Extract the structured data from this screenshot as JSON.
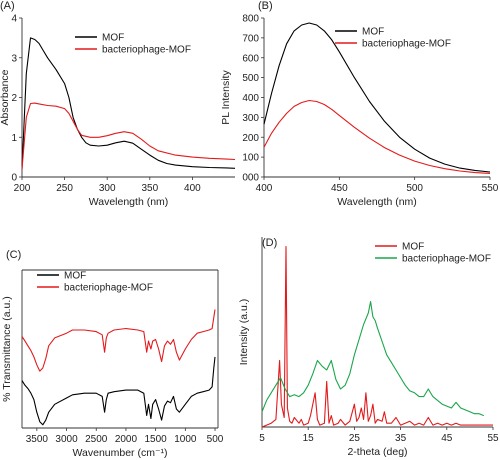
{
  "chart_data": [
    {
      "panel": "(A)",
      "type": "line",
      "xlabel": "Wavelength (nm)",
      "ylabel": "Absorbance",
      "xlim": [
        200,
        450
      ],
      "ylim": [
        0,
        4
      ],
      "xticks": [
        "200",
        "250",
        "300",
        "350",
        "400"
      ],
      "yticks": [
        "0",
        "1",
        "2",
        "3",
        "4"
      ],
      "legend_position": "top-right",
      "series": [
        {
          "name": "MOF",
          "color": "#000000",
          "x": [
            200,
            205,
            210,
            215,
            220,
            225,
            230,
            240,
            250,
            255,
            260,
            265,
            270,
            275,
            280,
            290,
            300,
            310,
            320,
            330,
            340,
            350,
            360,
            370,
            380,
            400,
            420,
            440,
            450
          ],
          "y": [
            0.2,
            2.6,
            3.5,
            3.46,
            3.36,
            3.18,
            3.0,
            2.7,
            2.35,
            2.0,
            1.5,
            1.2,
            1.0,
            0.86,
            0.8,
            0.78,
            0.8,
            0.86,
            0.9,
            0.85,
            0.7,
            0.55,
            0.42,
            0.34,
            0.3,
            0.26,
            0.24,
            0.23,
            0.22
          ]
        },
        {
          "name": "bacteriophage-MOF",
          "color": "#e31a1c",
          "x": [
            200,
            205,
            210,
            215,
            220,
            230,
            240,
            250,
            255,
            260,
            265,
            270,
            280,
            290,
            300,
            310,
            320,
            330,
            340,
            350,
            360,
            380,
            400,
            420,
            440,
            450
          ],
          "y": [
            0.2,
            1.5,
            1.85,
            1.86,
            1.84,
            1.8,
            1.78,
            1.72,
            1.6,
            1.4,
            1.2,
            1.05,
            1.0,
            1.0,
            1.04,
            1.1,
            1.14,
            1.1,
            0.95,
            0.78,
            0.66,
            0.55,
            0.5,
            0.47,
            0.45,
            0.44
          ]
        }
      ]
    },
    {
      "panel": "(B)",
      "type": "line",
      "xlabel": "Wavelength (nm)",
      "ylabel": "PL Intensity",
      "xlim": [
        400,
        550
      ],
      "ylim": [
        0,
        800
      ],
      "xticks": [
        "400",
        "450",
        "500",
        "550"
      ],
      "yticks": [
        "000",
        "100",
        "200",
        "300",
        "400",
        "500",
        "600",
        "700",
        "800"
      ],
      "legend_position": "top-right",
      "series": [
        {
          "name": "MOF",
          "color": "#000000",
          "x": [
            400,
            405,
            410,
            415,
            420,
            425,
            430,
            435,
            440,
            445,
            450,
            460,
            470,
            480,
            490,
            500,
            510,
            520,
            530,
            540,
            550
          ],
          "y": [
            265,
            420,
            560,
            670,
            735,
            765,
            775,
            765,
            735,
            690,
            630,
            500,
            380,
            280,
            200,
            140,
            95,
            65,
            45,
            33,
            25
          ]
        },
        {
          "name": "bacteriophage-MOF",
          "color": "#e31a1c",
          "x": [
            400,
            405,
            410,
            415,
            420,
            425,
            430,
            435,
            440,
            445,
            450,
            460,
            470,
            480,
            490,
            500,
            510,
            520,
            530,
            540,
            550
          ],
          "y": [
            150,
            220,
            275,
            320,
            355,
            375,
            385,
            380,
            365,
            340,
            310,
            250,
            195,
            148,
            110,
            80,
            58,
            42,
            30,
            22,
            18
          ]
        }
      ]
    },
    {
      "panel": "(C)",
      "type": "line",
      "xlabel": "Wavenumber (cm⁻¹)",
      "ylabel": "% Transmittance (a.u.)",
      "xlim": [
        3750,
        450
      ],
      "xticks": [
        "3500",
        "3000",
        "2500",
        "2000",
        "1500",
        "1000",
        "500"
      ],
      "legend_position": "top-left",
      "series": [
        {
          "name": "MOF",
          "color": "#000000",
          "x": [
            3750,
            3700,
            3650,
            3600,
            3550,
            3500,
            3450,
            3400,
            3350,
            3300,
            3200,
            3000,
            2900,
            2700,
            2500,
            2400,
            2360,
            2330,
            2300,
            2200,
            2000,
            1800,
            1700,
            1650,
            1620,
            1580,
            1550,
            1500,
            1450,
            1400,
            1350,
            1300,
            1250,
            1200,
            1150,
            1100,
            1000,
            900,
            800,
            700,
            600,
            550,
            520,
            500
          ],
          "y": [
            0.3,
            0.27,
            0.25,
            0.22,
            0.18,
            0.1,
            0.04,
            0.02,
            0.05,
            0.1,
            0.15,
            0.19,
            0.21,
            0.22,
            0.22,
            0.2,
            0.1,
            0.18,
            0.22,
            0.23,
            0.24,
            0.24,
            0.22,
            0.08,
            0.15,
            0.06,
            0.15,
            0.18,
            0.12,
            0.05,
            0.14,
            0.17,
            0.16,
            0.2,
            0.12,
            0.1,
            0.15,
            0.2,
            0.22,
            0.23,
            0.24,
            0.26,
            0.38,
            0.45
          ]
        },
        {
          "name": "bacteriophage-MOF",
          "color": "#e31a1c",
          "x": [
            3750,
            3700,
            3650,
            3600,
            3550,
            3500,
            3450,
            3400,
            3350,
            3300,
            3200,
            3000,
            2900,
            2700,
            2500,
            2400,
            2360,
            2330,
            2300,
            2200,
            2000,
            1800,
            1700,
            1650,
            1620,
            1580,
            1550,
            1500,
            1450,
            1400,
            1350,
            1300,
            1250,
            1200,
            1150,
            1100,
            1000,
            900,
            800,
            700,
            600,
            550,
            520,
            500
          ],
          "y": [
            0.58,
            0.55,
            0.52,
            0.49,
            0.45,
            0.4,
            0.36,
            0.38,
            0.44,
            0.52,
            0.57,
            0.6,
            0.62,
            0.62,
            0.61,
            0.59,
            0.48,
            0.57,
            0.6,
            0.62,
            0.63,
            0.62,
            0.61,
            0.48,
            0.55,
            0.5,
            0.55,
            0.56,
            0.5,
            0.42,
            0.52,
            0.55,
            0.53,
            0.56,
            0.48,
            0.43,
            0.5,
            0.56,
            0.6,
            0.61,
            0.62,
            0.63,
            0.7,
            0.75
          ]
        }
      ]
    },
    {
      "panel": "(D)",
      "type": "line",
      "xlabel": "2-theta (deg)",
      "ylabel": "Intensity (a.u.)",
      "xlim": [
        5,
        55
      ],
      "xticks": [
        "5",
        "15",
        "25",
        "35",
        "45",
        "55"
      ],
      "legend_position": "top-right",
      "series": [
        {
          "name": "MOF",
          "color": "#e31a1c",
          "x": [
            5,
            6,
            7,
            8,
            8.8,
            9.2,
            9.8,
            10.2,
            10.5,
            11,
            11.5,
            12,
            13,
            13.5,
            14,
            15,
            15.5,
            16.5,
            17,
            17.5,
            18.5,
            19,
            19.5,
            20,
            20.5,
            21.5,
            22,
            23,
            24,
            25,
            25.5,
            26,
            26.5,
            27,
            27.5,
            28,
            28.5,
            29,
            29.5,
            30,
            31,
            31.5,
            32,
            33,
            34,
            35,
            36,
            37,
            38,
            39,
            40,
            41,
            42,
            43,
            44,
            45,
            46,
            47,
            48,
            50,
            52,
            55
          ],
          "y": [
            0.0,
            0.01,
            0.02,
            0.04,
            0.35,
            0.12,
            0.05,
            0.95,
            0.1,
            0.03,
            0.02,
            0.05,
            0.02,
            0.04,
            0.01,
            0.02,
            0.06,
            0.18,
            0.04,
            0.01,
            0.02,
            0.24,
            0.02,
            0.06,
            0.01,
            0.02,
            0.04,
            0.01,
            0.03,
            0.12,
            0.03,
            0.05,
            0.1,
            0.04,
            0.18,
            0.03,
            0.06,
            0.12,
            0.02,
            0.04,
            0.03,
            0.08,
            0.02,
            0.02,
            0.05,
            0.01,
            0.02,
            0.03,
            0.01,
            0.02,
            0.01,
            0.05,
            0.01,
            0.02,
            0.01,
            0.02,
            0.01,
            0.02,
            0.01,
            0.01,
            0.01,
            0.01
          ]
        },
        {
          "name": "bacteriophage-MOF",
          "color": "#1aa64a",
          "x": [
            5,
            6,
            7,
            8,
            9,
            10,
            11,
            12,
            13,
            14,
            15,
            16,
            17,
            18,
            19,
            20,
            21,
            22,
            23,
            24,
            25,
            26,
            27,
            28,
            28.5,
            29,
            29.5,
            30,
            31,
            32,
            33,
            34,
            35,
            36,
            37,
            38,
            39,
            40,
            41,
            42,
            43,
            44,
            45,
            46,
            47,
            48,
            49,
            50,
            51,
            52,
            53
          ],
          "y": [
            0.08,
            0.14,
            0.18,
            0.22,
            0.26,
            0.2,
            0.16,
            0.17,
            0.16,
            0.18,
            0.22,
            0.28,
            0.35,
            0.32,
            0.3,
            0.35,
            0.25,
            0.2,
            0.22,
            0.28,
            0.38,
            0.46,
            0.54,
            0.6,
            0.66,
            0.58,
            0.56,
            0.52,
            0.45,
            0.38,
            0.34,
            0.3,
            0.26,
            0.22,
            0.19,
            0.18,
            0.16,
            0.16,
            0.2,
            0.16,
            0.14,
            0.12,
            0.11,
            0.1,
            0.13,
            0.1,
            0.09,
            0.08,
            0.07,
            0.07,
            0.06
          ]
        }
      ]
    }
  ]
}
